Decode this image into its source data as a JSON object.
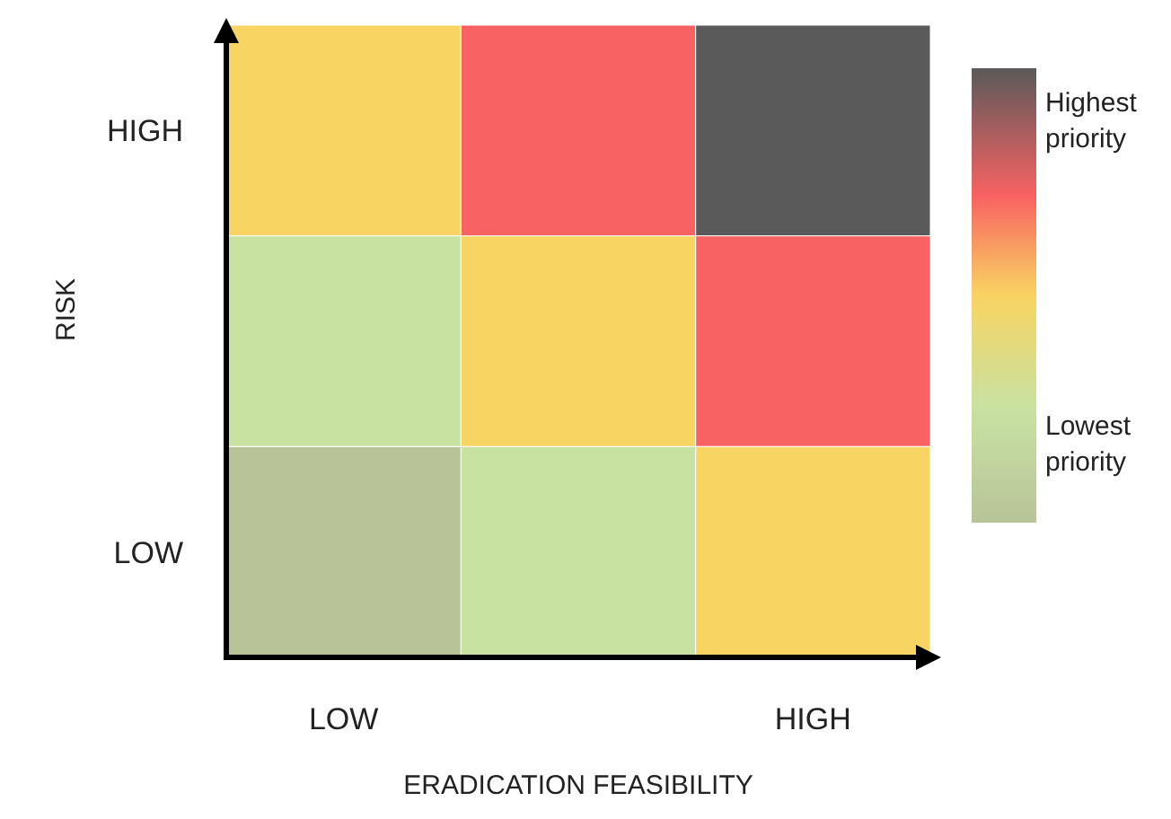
{
  "chart_data": {
    "type": "heatmap",
    "xlabel": "ERADICATION FEASIBILITY",
    "ylabel": "RISK",
    "categories": [
      "LOW",
      null,
      "HIGH"
    ],
    "y_categories": [
      "HIGH",
      null,
      "LOW"
    ],
    "cells": [
      [
        0.5,
        0.72,
        1
      ],
      [
        0.25,
        0.5,
        0.72
      ],
      [
        0,
        0.25,
        0.5
      ]
    ],
    "clim": [
      0,
      1
    ],
    "cticks": [
      {
        "value": 0.88,
        "label": "Highest priority"
      },
      {
        "value": 0.17,
        "label": "Lowest priority"
      }
    ]
  }
}
